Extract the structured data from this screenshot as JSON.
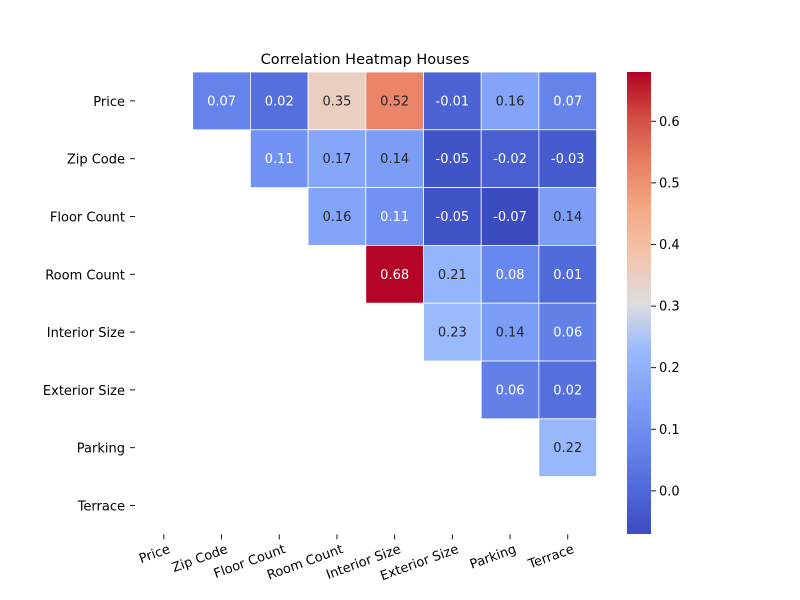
{
  "chart_data": {
    "type": "heatmap",
    "title": "Correlation Heatmap Houses",
    "labels": [
      "Price",
      "Zip Code",
      "Floor Count",
      "Room Count",
      "Interior Size",
      "Exterior Size",
      "Parking",
      "Terrace"
    ],
    "mask": "upper-triangle-only",
    "cells": [
      {
        "row": 0,
        "col": 1,
        "value": 0.07,
        "label": "0.07"
      },
      {
        "row": 0,
        "col": 2,
        "value": 0.02,
        "label": "0.02"
      },
      {
        "row": 0,
        "col": 3,
        "value": 0.35,
        "label": "0.35"
      },
      {
        "row": 0,
        "col": 4,
        "value": 0.52,
        "label": "0.52"
      },
      {
        "row": 0,
        "col": 5,
        "value": -0.01,
        "label": "-0.01"
      },
      {
        "row": 0,
        "col": 6,
        "value": 0.16,
        "label": "0.16"
      },
      {
        "row": 0,
        "col": 7,
        "value": 0.07,
        "label": "0.07"
      },
      {
        "row": 1,
        "col": 2,
        "value": 0.11,
        "label": "0.11"
      },
      {
        "row": 1,
        "col": 3,
        "value": 0.17,
        "label": "0.17"
      },
      {
        "row": 1,
        "col": 4,
        "value": 0.14,
        "label": "0.14"
      },
      {
        "row": 1,
        "col": 5,
        "value": -0.05,
        "label": "-0.05"
      },
      {
        "row": 1,
        "col": 6,
        "value": -0.02,
        "label": "-0.02"
      },
      {
        "row": 1,
        "col": 7,
        "value": -0.03,
        "label": "-0.03"
      },
      {
        "row": 2,
        "col": 3,
        "value": 0.16,
        "label": "0.16"
      },
      {
        "row": 2,
        "col": 4,
        "value": 0.11,
        "label": "0.11"
      },
      {
        "row": 2,
        "col": 5,
        "value": -0.05,
        "label": "-0.05"
      },
      {
        "row": 2,
        "col": 6,
        "value": -0.07,
        "label": "-0.07"
      },
      {
        "row": 2,
        "col": 7,
        "value": 0.14,
        "label": "0.14"
      },
      {
        "row": 3,
        "col": 4,
        "value": 0.68,
        "label": "0.68"
      },
      {
        "row": 3,
        "col": 5,
        "value": 0.21,
        "label": "0.21"
      },
      {
        "row": 3,
        "col": 6,
        "value": 0.08,
        "label": "0.08"
      },
      {
        "row": 3,
        "col": 7,
        "value": 0.01,
        "label": "0.01"
      },
      {
        "row": 4,
        "col": 5,
        "value": 0.23,
        "label": "0.23"
      },
      {
        "row": 4,
        "col": 6,
        "value": 0.14,
        "label": "0.14"
      },
      {
        "row": 4,
        "col": 7,
        "value": 0.06,
        "label": "0.06"
      },
      {
        "row": 5,
        "col": 6,
        "value": 0.06,
        "label": "0.06"
      },
      {
        "row": 5,
        "col": 7,
        "value": 0.02,
        "label": "0.02"
      },
      {
        "row": 6,
        "col": 7,
        "value": 0.22,
        "label": "0.22"
      }
    ],
    "colorscale": "coolwarm",
    "vmin": -0.07,
    "vmax": 0.68,
    "colorbar_ticks": [
      {
        "value": 0.0,
        "label": "0.0"
      },
      {
        "value": 0.1,
        "label": "0.1"
      },
      {
        "value": 0.2,
        "label": "0.2"
      },
      {
        "value": 0.3,
        "label": "0.3"
      },
      {
        "value": 0.4,
        "label": "0.4"
      },
      {
        "value": 0.5,
        "label": "0.5"
      },
      {
        "value": 0.6,
        "label": "0.6"
      }
    ],
    "colorbar_position": "right",
    "xtick_rotation_deg": 20,
    "grid": false
  }
}
